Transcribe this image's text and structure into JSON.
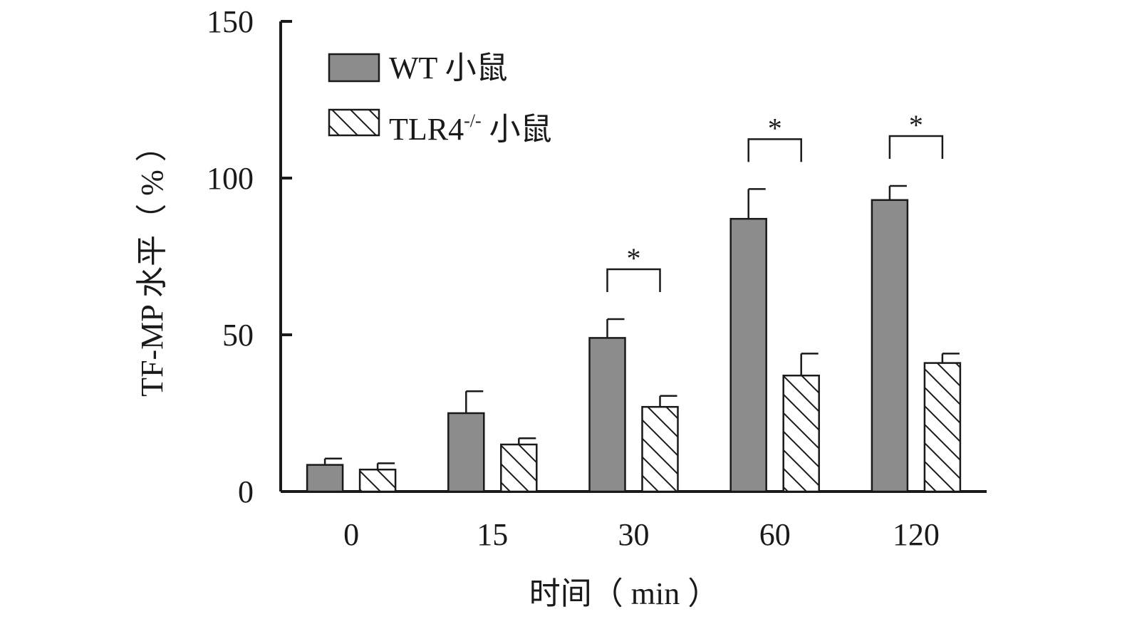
{
  "chart_data": {
    "type": "bar",
    "title": "",
    "xlabel": "时间（ min ）",
    "ylabel": "TF-MP 水平（ % ）",
    "ylim": [
      0,
      150
    ],
    "yticks": [
      0,
      50,
      100,
      150
    ],
    "categories": [
      "0",
      "15",
      "30",
      "60",
      "120"
    ],
    "series": [
      {
        "name": "WT 小鼠",
        "values": [
          8.5,
          25,
          49,
          87,
          93
        ],
        "errors": [
          2,
          7,
          6,
          9.5,
          4.5
        ],
        "fill": "#8c8c8c",
        "pattern": "solid"
      },
      {
        "name": "TLR4-/- 小鼠",
        "name_base": "TLR4",
        "name_sup": "-/-",
        "name_suffix": " 小鼠",
        "values": [
          7,
          15,
          27,
          37,
          41
        ],
        "errors": [
          2,
          2,
          3.5,
          7,
          3
        ],
        "fill": "#ffffff",
        "pattern": "diagonal-hatch"
      }
    ],
    "significance": [
      {
        "category": "30",
        "label": "*"
      },
      {
        "category": "60",
        "label": "*"
      },
      {
        "category": "120",
        "label": "*"
      }
    ],
    "grid": false,
    "legend_position": "top-left"
  }
}
